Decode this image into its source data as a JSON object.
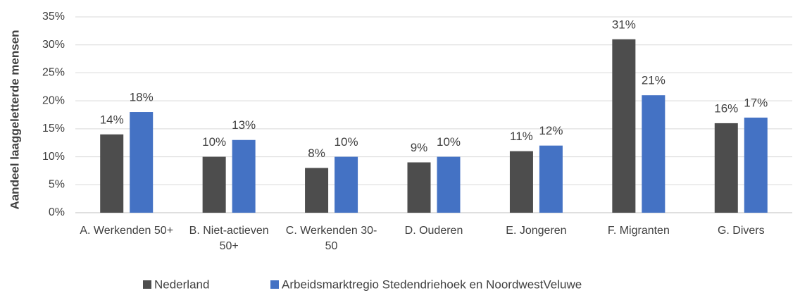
{
  "chart_data": {
    "type": "bar",
    "y_label": "Aandeel laaggeletterde mensen",
    "categories": [
      "A. Werkenden 50+",
      "B. Niet-actieven 50+",
      "C. Werkenden 30-50",
      "D. Ouderen",
      "E. Jongeren",
      "F. Migranten",
      "G. Divers"
    ],
    "series": [
      {
        "name": "Nederland",
        "color": "#4d4d4d",
        "values": [
          14,
          10,
          8,
          9,
          11,
          31,
          16
        ],
        "value_labels": [
          "14%",
          "10%",
          "8%",
          "9%",
          "11%",
          "31%",
          "16%"
        ]
      },
      {
        "name": "Arbeidsmarktregio Stedendriehoek en NoordwestVeluwe",
        "color": "#4472c4",
        "values": [
          18,
          13,
          10,
          10,
          12,
          21,
          17
        ],
        "value_labels": [
          "18%",
          "13%",
          "10%",
          "10%",
          "12%",
          "21%",
          "17%"
        ]
      }
    ],
    "ylim": [
      0,
      35
    ],
    "yticks": [
      {
        "value": 0,
        "label": "0%"
      },
      {
        "value": 5,
        "label": "5%"
      },
      {
        "value": 10,
        "label": "10%"
      },
      {
        "value": 15,
        "label": "15%"
      },
      {
        "value": 20,
        "label": "20%"
      },
      {
        "value": 25,
        "label": "25%"
      },
      {
        "value": 30,
        "label": "30%"
      },
      {
        "value": 35,
        "label": "35%"
      }
    ],
    "grid": true,
    "legend": "bottom"
  }
}
